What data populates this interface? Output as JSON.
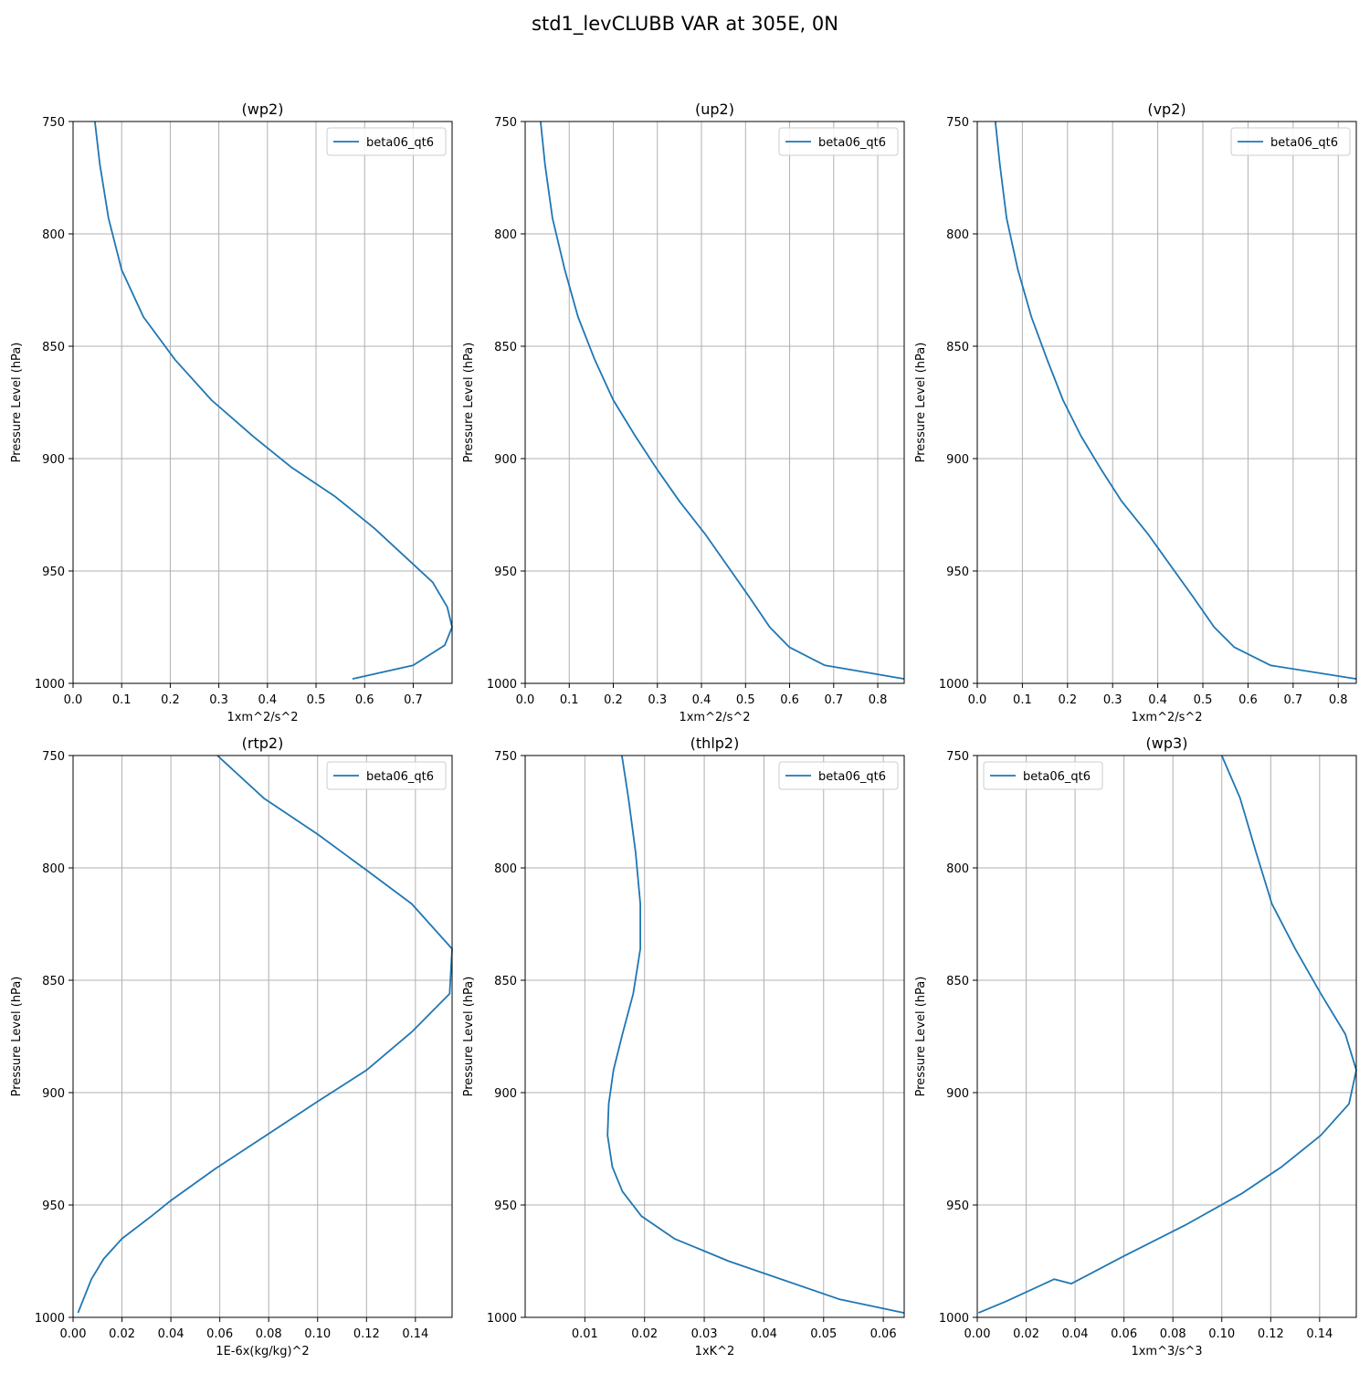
{
  "figure": {
    "title": "std1_levCLUBB VAR at 305E, 0N"
  },
  "colors": {
    "series": "#1f77b4",
    "grid": "#b0b0b0",
    "axes": "#000000"
  },
  "chart_data": [
    {
      "type": "line",
      "title": "(wp2)",
      "xlabel": "1xm^2/s^2",
      "ylabel": "Pressure Level (hPa)",
      "xlim": [
        0,
        0.78
      ],
      "ylim": [
        1000,
        750
      ],
      "grid": true,
      "legend": "top-right",
      "xticks": [
        "0.0",
        "0.1",
        "0.2",
        "0.3",
        "0.4",
        "0.5",
        "0.6",
        "0.7"
      ],
      "yticks": [
        "750",
        "800",
        "850",
        "900",
        "950",
        "1000"
      ],
      "series": [
        {
          "name": "beta06_qt6",
          "x": [
            0.045,
            0.055,
            0.073,
            0.1,
            0.145,
            0.21,
            0.285,
            0.37,
            0.45,
            0.54,
            0.62,
            0.69,
            0.74,
            0.77,
            0.78,
            0.765,
            0.7,
            0.575
          ],
          "y": [
            750,
            769,
            793,
            816,
            837,
            856,
            874,
            890,
            904,
            917,
            931,
            945,
            955,
            966,
            975,
            983,
            992,
            998
          ]
        }
      ]
    },
    {
      "type": "line",
      "title": "(up2)",
      "xlabel": "1xm^2/s^2",
      "ylabel": "Pressure Level (hPa)",
      "xlim": [
        0,
        0.86
      ],
      "ylim": [
        1000,
        750
      ],
      "grid": true,
      "legend": "top-right",
      "xticks": [
        "0.0",
        "0.1",
        "0.2",
        "0.3",
        "0.4",
        "0.5",
        "0.6",
        "0.7",
        "0.8"
      ],
      "yticks": [
        "750",
        "800",
        "850",
        "900",
        "950",
        "1000"
      ],
      "series": [
        {
          "name": "beta06_qt6",
          "x": [
            0.035,
            0.045,
            0.062,
            0.09,
            0.12,
            0.158,
            0.2,
            0.25,
            0.3,
            0.35,
            0.41,
            0.46,
            0.51,
            0.555,
            0.6,
            0.68,
            0.86
          ],
          "y": [
            750,
            769,
            793,
            816,
            837,
            856,
            874,
            890,
            905,
            919,
            934,
            948,
            962,
            975,
            984,
            992,
            998
          ]
        }
      ]
    },
    {
      "type": "line",
      "title": "(vp2)",
      "xlabel": "1xm^2/s^2",
      "ylabel": "Pressure Level (hPa)",
      "xlim": [
        0,
        0.84
      ],
      "ylim": [
        1000,
        750
      ],
      "grid": true,
      "legend": "top-right",
      "xticks": [
        "0.0",
        "0.1",
        "0.2",
        "0.3",
        "0.4",
        "0.5",
        "0.6",
        "0.7",
        "0.8"
      ],
      "yticks": [
        "750",
        "800",
        "850",
        "900",
        "950",
        "1000"
      ],
      "series": [
        {
          "name": "beta06_qt6",
          "x": [
            0.04,
            0.05,
            0.065,
            0.09,
            0.12,
            0.155,
            0.19,
            0.23,
            0.275,
            0.32,
            0.38,
            0.43,
            0.48,
            0.525,
            0.57,
            0.65,
            0.84
          ],
          "y": [
            750,
            769,
            793,
            816,
            837,
            856,
            874,
            890,
            905,
            919,
            934,
            948,
            962,
            975,
            984,
            992,
            998
          ]
        }
      ]
    },
    {
      "type": "line",
      "title": "(rtp2)",
      "xlabel": "1E-6x(kg/kg)^2",
      "ylabel": "Pressure Level (hPa)",
      "xlim": [
        0,
        0.155
      ],
      "ylim": [
        1000,
        750
      ],
      "grid": true,
      "legend": "top-right",
      "xticks": [
        "0.00",
        "0.02",
        "0.04",
        "0.06",
        "0.08",
        "0.10",
        "0.12",
        "0.14"
      ],
      "yticks": [
        "750",
        "800",
        "850",
        "900",
        "950",
        "1000"
      ],
      "series": [
        {
          "name": "beta06_qt6",
          "x": [
            0.059,
            0.078,
            0.1,
            0.12,
            0.1385,
            0.155,
            0.154,
            0.1385,
            0.12,
            0.1,
            0.079,
            0.058,
            0.04,
            0.032,
            0.02,
            0.0125,
            0.0075,
            0.002
          ],
          "y": [
            750,
            769,
            785,
            801,
            816,
            836,
            856,
            873,
            890,
            904,
            919,
            934,
            948,
            955,
            965,
            974,
            983,
            998
          ]
        }
      ]
    },
    {
      "type": "line",
      "title": "(thlp2)",
      "xlabel": "1xK^2",
      "ylabel": "Pressure Level (hPa)",
      "xlim": [
        0,
        0.0635
      ],
      "ylim": [
        1000,
        750
      ],
      "grid": true,
      "legend": "top-right",
      "xticks": [
        "0.01",
        "0.02",
        "0.03",
        "0.04",
        "0.05",
        "0.06"
      ],
      "yticks": [
        "750",
        "800",
        "850",
        "900",
        "950",
        "1000"
      ],
      "series": [
        {
          "name": "beta06_qt6",
          "x": [
            0.0162,
            0.0173,
            0.0185,
            0.0193,
            0.0193,
            0.0181,
            0.0163,
            0.0148,
            0.014,
            0.0138,
            0.0146,
            0.0163,
            0.0195,
            0.025,
            0.0341,
            0.0527,
            0.0635
          ],
          "y": [
            750,
            769,
            793,
            816,
            836,
            856,
            874,
            890,
            905,
            919,
            933,
            944,
            955,
            965,
            975,
            992,
            998
          ]
        }
      ]
    },
    {
      "type": "line",
      "title": "(wp3)",
      "xlabel": "1xm^3/s^3",
      "ylabel": "Pressure Level (hPa)",
      "xlim": [
        0,
        0.155
      ],
      "ylim": [
        1000,
        750
      ],
      "grid": true,
      "legend": "top-left",
      "xticks": [
        "0.00",
        "0.02",
        "0.04",
        "0.06",
        "0.08",
        "0.10",
        "0.12",
        "0.14"
      ],
      "yticks": [
        "750",
        "800",
        "850",
        "900",
        "950",
        "1000"
      ],
      "series": [
        {
          "name": "beta06_qt6",
          "x": [
            0.1,
            0.1075,
            0.114,
            0.1205,
            0.13,
            0.1405,
            0.1505,
            0.155,
            0.152,
            0.1405,
            0.1245,
            0.108,
            0.085,
            0.0595,
            0.0385,
            0.0315,
            0.0115,
            0.0005
          ],
          "y": [
            750,
            769,
            793,
            816,
            836,
            856,
            874,
            890,
            905,
            919,
            933,
            945,
            959,
            973,
            985,
            983,
            993,
            998
          ]
        }
      ]
    }
  ]
}
